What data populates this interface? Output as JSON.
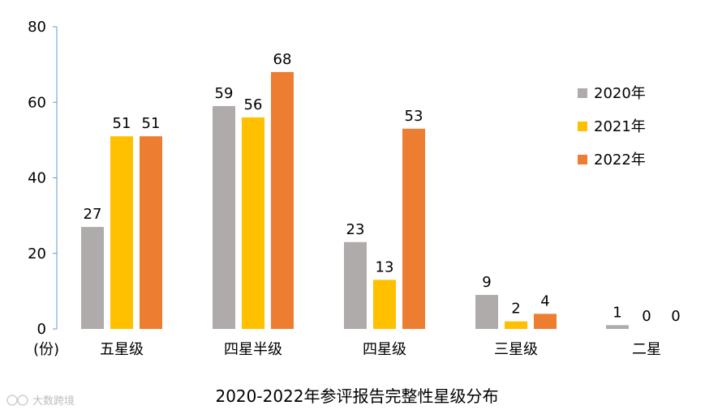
{
  "chart_data": {
    "type": "bar",
    "title": "2020-2022年参评报告完整性星级分布",
    "ylabel": "(份)",
    "xlabel": "",
    "ylim": [
      0,
      80
    ],
    "yticks": [
      0,
      20,
      40,
      60,
      80
    ],
    "categories": [
      "五星级",
      "四星半级",
      "四星级",
      "三星级",
      "二星"
    ],
    "series": [
      {
        "name": "2020年",
        "color": "#AFABAB",
        "values": [
          27,
          59,
          23,
          9,
          1
        ]
      },
      {
        "name": "2021年",
        "color": "#FFC000",
        "values": [
          51,
          56,
          13,
          2,
          0
        ]
      },
      {
        "name": "2022年",
        "color": "#ED7D31",
        "values": [
          51,
          68,
          53,
          4,
          0
        ]
      }
    ],
    "legend_position": "right",
    "grid": false
  },
  "watermark": {
    "text": "大数跨境"
  }
}
